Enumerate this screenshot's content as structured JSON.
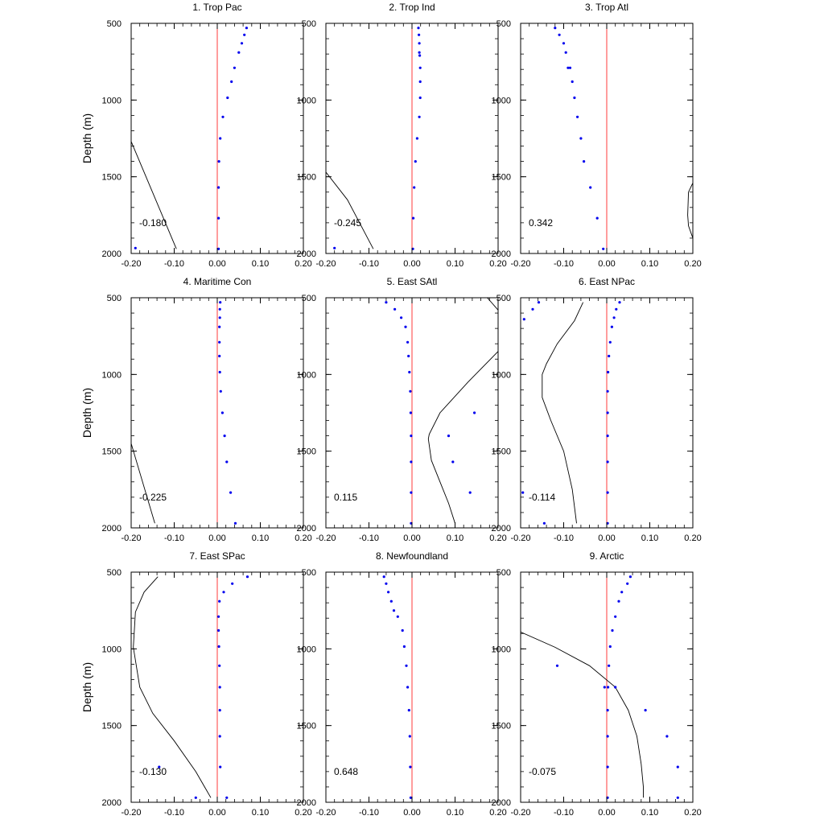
{
  "chart_data": [
    {
      "type": "line",
      "title": "1. Trop Pac",
      "annotation": "-0.180",
      "ylabel": "Depth (m)",
      "xlim": [
        -0.2,
        0.2
      ],
      "ylim": [
        500,
        2000
      ],
      "y_inverted": true,
      "reference_x": 0,
      "series": [
        {
          "kind": "line",
          "x": [
            -0.2,
            -0.095
          ],
          "y": [
            1270,
            1970
          ]
        },
        {
          "kind": "scatter",
          "x": [
            0.068,
            0.063,
            0.057,
            0.05,
            0.04,
            0.033,
            0.024,
            0.013,
            0.007,
            0.004,
            0.003,
            0.003,
            0.003,
            -0.19
          ],
          "y": [
            530,
            575,
            630,
            690,
            790,
            880,
            985,
            1110,
            1250,
            1400,
            1570,
            1770,
            1970,
            1965
          ]
        }
      ]
    },
    {
      "type": "line",
      "title": "2. Trop Ind",
      "annotation": "-0.245",
      "ylabel": "",
      "xlim": [
        -0.2,
        0.2
      ],
      "ylim": [
        500,
        2000
      ],
      "y_inverted": true,
      "reference_x": 0,
      "series": [
        {
          "kind": "line",
          "x": [
            -0.2,
            -0.15,
            -0.09
          ],
          "y": [
            1470,
            1650,
            1970
          ]
        },
        {
          "kind": "scatter",
          "x": [
            0.015,
            0.016,
            0.017,
            0.017,
            0.018,
            0.019,
            0.019,
            0.019,
            0.017,
            0.012,
            0.008,
            0.005,
            0.003,
            0.002,
            -0.18
          ],
          "y": [
            530,
            575,
            630,
            690,
            710,
            790,
            880,
            985,
            1110,
            1250,
            1400,
            1570,
            1770,
            1970,
            1965
          ]
        }
      ]
    },
    {
      "type": "line",
      "title": "3. Trop Atl",
      "annotation": "0.342",
      "ylabel": "",
      "xlim": [
        -0.2,
        0.2
      ],
      "ylim": [
        500,
        2000
      ],
      "y_inverted": true,
      "reference_x": 0,
      "series": [
        {
          "kind": "line",
          "x": [
            0.2,
            0.19,
            0.188,
            0.19,
            0.2
          ],
          "y": [
            1540,
            1600,
            1750,
            1820,
            1900
          ]
        },
        {
          "kind": "scatter",
          "x": [
            -0.12,
            -0.11,
            -0.1,
            -0.095,
            -0.09,
            -0.085,
            -0.08,
            -0.075,
            -0.068,
            -0.06,
            -0.053,
            -0.038,
            -0.022,
            -0.008
          ],
          "y": [
            530,
            575,
            630,
            690,
            790,
            790,
            880,
            985,
            1110,
            1250,
            1400,
            1570,
            1770,
            1970
          ]
        }
      ]
    },
    {
      "type": "line",
      "title": "4. Maritime Con",
      "annotation": "-0.225",
      "ylabel": "Depth (m)",
      "xlim": [
        -0.2,
        0.2
      ],
      "ylim": [
        500,
        2000
      ],
      "y_inverted": true,
      "reference_x": 0,
      "series": [
        {
          "kind": "line",
          "x": [
            -0.2,
            -0.145
          ],
          "y": [
            1450,
            1970
          ]
        },
        {
          "kind": "scatter",
          "x": [
            0.007,
            0.006,
            0.006,
            0.005,
            0.005,
            0.005,
            0.006,
            0.008,
            0.012,
            0.017,
            0.022,
            0.031,
            0.042
          ],
          "y": [
            530,
            575,
            630,
            690,
            790,
            880,
            985,
            1110,
            1250,
            1400,
            1570,
            1770,
            1970
          ]
        }
      ]
    },
    {
      "type": "line",
      "title": "5. East SAtl",
      "annotation": "0.115",
      "ylabel": "",
      "xlim": [
        -0.2,
        0.2
      ],
      "ylim": [
        500,
        2000
      ],
      "y_inverted": true,
      "reference_x": 0,
      "series": [
        {
          "kind": "line",
          "x": [
            0.175,
            0.2
          ],
          "y": [
            500,
            580
          ]
        },
        {
          "kind": "line",
          "x": [
            0.2,
            0.13,
            0.065,
            0.04,
            0.038,
            0.045,
            0.065,
            0.085,
            0.1
          ],
          "y": [
            850,
            1050,
            1250,
            1390,
            1420,
            1560,
            1700,
            1840,
            1970
          ]
        },
        {
          "kind": "scatter",
          "x": [
            -0.06,
            -0.04,
            -0.025,
            -0.015,
            -0.01,
            -0.008,
            -0.006,
            -0.004,
            -0.003,
            -0.002,
            -0.002,
            -0.002,
            -0.002,
            0.145,
            0.085,
            0.095,
            0.135
          ],
          "y": [
            530,
            575,
            630,
            690,
            790,
            880,
            985,
            1110,
            1250,
            1400,
            1570,
            1770,
            1970,
            1250,
            1400,
            1570,
            1770
          ]
        }
      ]
    },
    {
      "type": "line",
      "title": "6. East NPac",
      "annotation": "-0.114",
      "ylabel": "",
      "xlim": [
        -0.2,
        0.2
      ],
      "ylim": [
        500,
        2000
      ],
      "y_inverted": true,
      "reference_x": 0,
      "series": [
        {
          "kind": "line",
          "x": [
            -0.055,
            -0.075,
            -0.115,
            -0.14,
            -0.15,
            -0.15,
            -0.13,
            -0.1,
            -0.08,
            -0.07
          ],
          "y": [
            530,
            650,
            800,
            930,
            1000,
            1150,
            1300,
            1500,
            1750,
            1970
          ]
        },
        {
          "kind": "scatter",
          "x": [
            0.03,
            0.022,
            0.017,
            0.012,
            0.008,
            0.005,
            0.003,
            0.002,
            0.002,
            0.002,
            0.002,
            0.002,
            0.002,
            -0.158,
            -0.172,
            -0.192,
            -0.195,
            -0.145
          ],
          "y": [
            530,
            575,
            630,
            690,
            790,
            880,
            985,
            1110,
            1250,
            1400,
            1570,
            1770,
            1970,
            530,
            575,
            640,
            1770,
            1970
          ]
        }
      ]
    },
    {
      "type": "line",
      "title": "7. East SPac",
      "annotation": "-0.130",
      "ylabel": "Depth (m)",
      "xlim": [
        -0.2,
        0.2
      ],
      "ylim": [
        500,
        2000
      ],
      "y_inverted": true,
      "reference_x": 0,
      "series": [
        {
          "kind": "line",
          "x": [
            -0.138,
            -0.17,
            -0.19,
            -0.195,
            -0.18,
            -0.15,
            -0.1,
            -0.05,
            -0.015
          ],
          "y": [
            530,
            630,
            760,
            990,
            1250,
            1420,
            1600,
            1800,
            1970
          ]
        },
        {
          "kind": "scatter",
          "x": [
            0.07,
            0.035,
            0.015,
            0.005,
            0.003,
            0.003,
            0.004,
            0.005,
            0.006,
            0.006,
            0.006,
            0.007,
            0.022,
            -0.135,
            -0.05
          ],
          "y": [
            530,
            575,
            630,
            690,
            790,
            880,
            985,
            1110,
            1250,
            1400,
            1570,
            1770,
            1970,
            1770,
            1970
          ]
        }
      ]
    },
    {
      "type": "line",
      "title": "8. Newfoundland",
      "annotation": "0.648",
      "ylabel": "",
      "xlim": [
        -0.2,
        0.2
      ],
      "ylim": [
        500,
        2000
      ],
      "y_inverted": true,
      "reference_x": 0,
      "series": [
        {
          "kind": "scatter",
          "x": [
            -0.065,
            -0.06,
            -0.055,
            -0.048,
            -0.042,
            -0.033,
            -0.022,
            -0.018,
            -0.013,
            -0.01,
            -0.007,
            -0.005,
            -0.004,
            -0.003
          ],
          "y": [
            530,
            575,
            630,
            690,
            750,
            790,
            880,
            985,
            1110,
            1250,
            1400,
            1570,
            1770,
            1970
          ]
        }
      ]
    },
    {
      "type": "line",
      "title": "9. Arctic",
      "annotation": "-0.075",
      "ylabel": "",
      "xlim": [
        -0.2,
        0.2
      ],
      "ylim": [
        500,
        2000
      ],
      "y_inverted": true,
      "reference_x": 0,
      "series": [
        {
          "kind": "line",
          "x": [
            -0.2,
            -0.12,
            -0.04,
            0.02,
            0.05,
            0.07,
            0.08,
            0.085,
            0.085
          ],
          "y": [
            890,
            990,
            1110,
            1250,
            1400,
            1570,
            1750,
            1900,
            1970
          ]
        },
        {
          "kind": "scatter",
          "x": [
            0.055,
            0.048,
            0.035,
            0.028,
            0.02,
            0.013,
            0.008,
            0.005,
            0.003,
            0.002,
            0.002,
            0.002,
            0.002,
            -0.115,
            0.02,
            0.09,
            0.14,
            0.165,
            0.165,
            -0.005
          ],
          "y": [
            530,
            575,
            630,
            690,
            790,
            880,
            985,
            1110,
            1250,
            1400,
            1570,
            1770,
            1970,
            1110,
            1250,
            1400,
            1570,
            1770,
            1970,
            1250
          ]
        }
      ]
    }
  ]
}
